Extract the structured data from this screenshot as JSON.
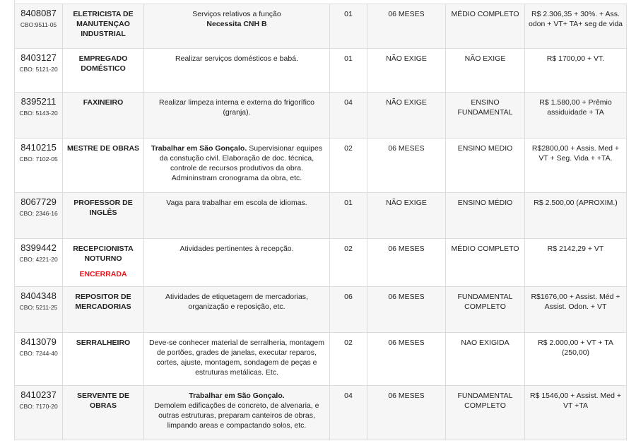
{
  "colors": {
    "border": "#dcdcdc",
    "alt_row": "#f6f6f6",
    "closed_status": "#e8141b"
  },
  "jobs": [
    {
      "code": "8408087",
      "cbo": "CBO:9511-05",
      "title": "ELETRICISTA DE MANUTENÇAO INDUSTRIAL",
      "desc_pre": "Serviços relativos a função",
      "desc_bold": "Necessita CNH B",
      "desc_post": "",
      "bold_block": true,
      "bold_first": false,
      "qty": "01",
      "experience": "06 MESES",
      "schooling": "MÉDIO COMPLETO",
      "salary": "R$ 2.306,35 + 30%. + Ass. odon + VT+ TA+ seg de vida"
    },
    {
      "code": "8403127",
      "cbo": "CBO: 5121-20",
      "title": "EMPREGADO DOMÉSTICO",
      "desc_pre": "Realizar serviços domésticos e babá.",
      "qty": "01",
      "experience": "NÃO EXIGE",
      "schooling": "NÃO EXIGE",
      "salary": "R$ 1700,00 + VT."
    },
    {
      "code": "8395211",
      "cbo": "CBO: 5143-20",
      "title": "FAXINEIRO",
      "desc_pre": "Realizar limpeza interna e externa do frigorífico (granja).",
      "qty": "04",
      "experience": "NÃO EXIGE",
      "schooling": "ENSINO FUNDAMENTAL",
      "salary": "R$ 1.580,00 + Prêmio assiduidade + TA"
    },
    {
      "code": "8410215",
      "cbo": "CBO: 7102-05",
      "title": "MESTRE DE OBRAS",
      "desc_bold": "Trabalhar em São Gonçalo.",
      "desc_post": " Supervisionar equipes da constução civil. Elaboração de doc. técnica, controle de recursos produtivos da obra. Admininstram cronograma da obra, etc.",
      "bold_first": true,
      "qty": "02",
      "experience": "06 MESES",
      "schooling": "ENSINO MEDIO",
      "salary": "R$2800,00 + Assis. Med + VT + Seg. Vida + +TA."
    },
    {
      "code": "8067729",
      "cbo": "CBO: 2346-16",
      "title": "PROFESSOR DE INGLÊS",
      "desc_pre": "Vaga para trabalhar em escola de idiomas.",
      "qty": "01",
      "experience": "NÃO EXIGE",
      "schooling": "ENSINO MÉDIO",
      "salary": "R$ 2.500,00 (APROXIM.)"
    },
    {
      "code": "8399442",
      "cbo": "CBO: 4221-20",
      "title": "RECEPCIONISTA NOTURNO",
      "status": "ENCERRADA",
      "desc_pre": "Atividades pertinentes à recepção.",
      "qty": "02",
      "experience": "06 MESES",
      "schooling": "MÉDIO COMPLETO",
      "salary": "R$ 2142,29 + VT"
    },
    {
      "code": "8404348",
      "cbo": "CBO: 5211-25",
      "title": "REPOSITOR DE MERCADORIAS",
      "desc_pre": "Atividades de etiquetagem de mercadorias, organização e reposição, etc.",
      "qty": "06",
      "experience": "06 MESES",
      "schooling": "FUNDAMENTAL COMPLETO",
      "salary": "R$1676,00 + Assist. Méd + Assist. Odon. + VT"
    },
    {
      "code": "8413079",
      "cbo": "CBO: 7244-40",
      "title": "SERRALHEIRO",
      "desc_pre": "Deve-se conhecer material de serralheria, montagem de portões, grades de janelas, executar reparos, cortes, ajuste, montagem, sondagem de peças e estruturas metálicas. Etc.",
      "qty": "02",
      "experience": "06 MESES",
      "schooling": "NAO EXIGIDA",
      "salary": "R$ 2.000,00 + VT + TA (250,00)"
    },
    {
      "code": "8410237",
      "cbo": "CBO: 7170-20",
      "title": "SERVENTE DE OBRAS",
      "desc_bold": "Trabalhar em São Gonçalo.",
      "desc_post": "Demolem edificações de concreto, de alvenaria, e outras estruturas, preparam canteiros de obras, limpando areas e compactando solos, etc.",
      "bold_first": true,
      "bold_block": true,
      "qty": "04",
      "experience": "06 MESES",
      "schooling": "FUNDAMENTAL COMPLETO",
      "salary": "R$ 1546,00 + Assist. Med + VT +TA"
    }
  ]
}
